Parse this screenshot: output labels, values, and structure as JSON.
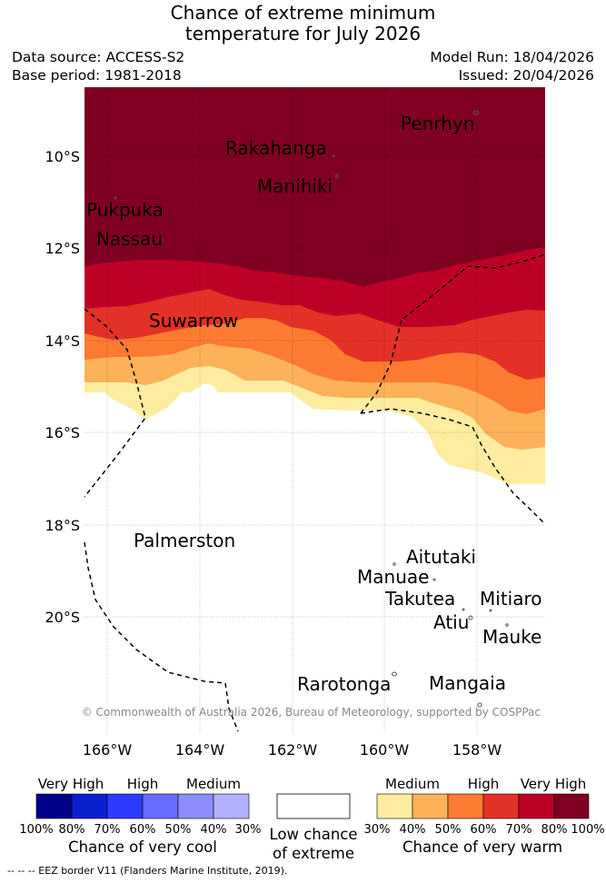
{
  "title": {
    "line1": "Chance of extreme minimum",
    "line2": "temperature for July 2026"
  },
  "meta": {
    "data_source": "Data source: ACCESS-S2",
    "base_period": "Base period: 1981-2018",
    "model_run": "Model Run: 18/04/2026",
    "issued": "Issued: 20/04/2026"
  },
  "map": {
    "lat_labels": [
      "10°S",
      "12°S",
      "14°S",
      "16°S",
      "18°S",
      "20°S"
    ],
    "lon_labels": [
      "166°W",
      "164°W",
      "162°W",
      "160°W",
      "158°W"
    ],
    "places": [
      {
        "name": "Penrhyn"
      },
      {
        "name": "Rakahanga"
      },
      {
        "name": "Manihiki"
      },
      {
        "name": "Pukpuka"
      },
      {
        "name": "Nassau"
      },
      {
        "name": "Suwarrow"
      },
      {
        "name": "Palmerston"
      },
      {
        "name": "Aitutaki"
      },
      {
        "name": "Manuae"
      },
      {
        "name": "Takutea"
      },
      {
        "name": "Mitiaro"
      },
      {
        "name": "Atiu"
      },
      {
        "name": "Mauke"
      },
      {
        "name": "Rarotonga"
      },
      {
        "name": "Mangaia"
      }
    ],
    "copyright": "© Commonwealth of Australia 2026, Bureau of Meteorology, supported by COSPPac",
    "colors": {
      "vh_warm": "#7f0021",
      "h_warm_80": "#bd0026",
      "w70": "#e33127",
      "w60": "#fc7b30",
      "w50": "#fdb25a",
      "w40": "#feeda0"
    }
  },
  "legend": {
    "cool": {
      "labels": {
        "very_high": "Very High",
        "high": "High",
        "medium": "Medium"
      },
      "ticks": [
        "100%",
        "80%",
        "70%",
        "60%",
        "50%",
        "40%",
        "30%"
      ],
      "colors": [
        "#00008b",
        "#0a1fcf",
        "#2e3bff",
        "#6a6cff",
        "#8c8cff",
        "#b0b0ff"
      ],
      "caption": "Chance of very cool"
    },
    "low": {
      "caption_line1": "Low chance",
      "caption_line2": "of extreme",
      "color": "#ffffff"
    },
    "warm": {
      "labels": {
        "medium": "Medium",
        "high": "High",
        "very_high": "Very High"
      },
      "ticks": [
        "30%",
        "40%",
        "50%",
        "60%",
        "70%",
        "80%",
        "100%"
      ],
      "colors": [
        "#feeda0",
        "#fdb25a",
        "#fc7b30",
        "#e33127",
        "#bd0026",
        "#7f0021"
      ],
      "caption": "Chance of very warm"
    }
  },
  "footer": "--  --  -- EEZ border V11 (Flanders Marine Institute, 2019)."
}
